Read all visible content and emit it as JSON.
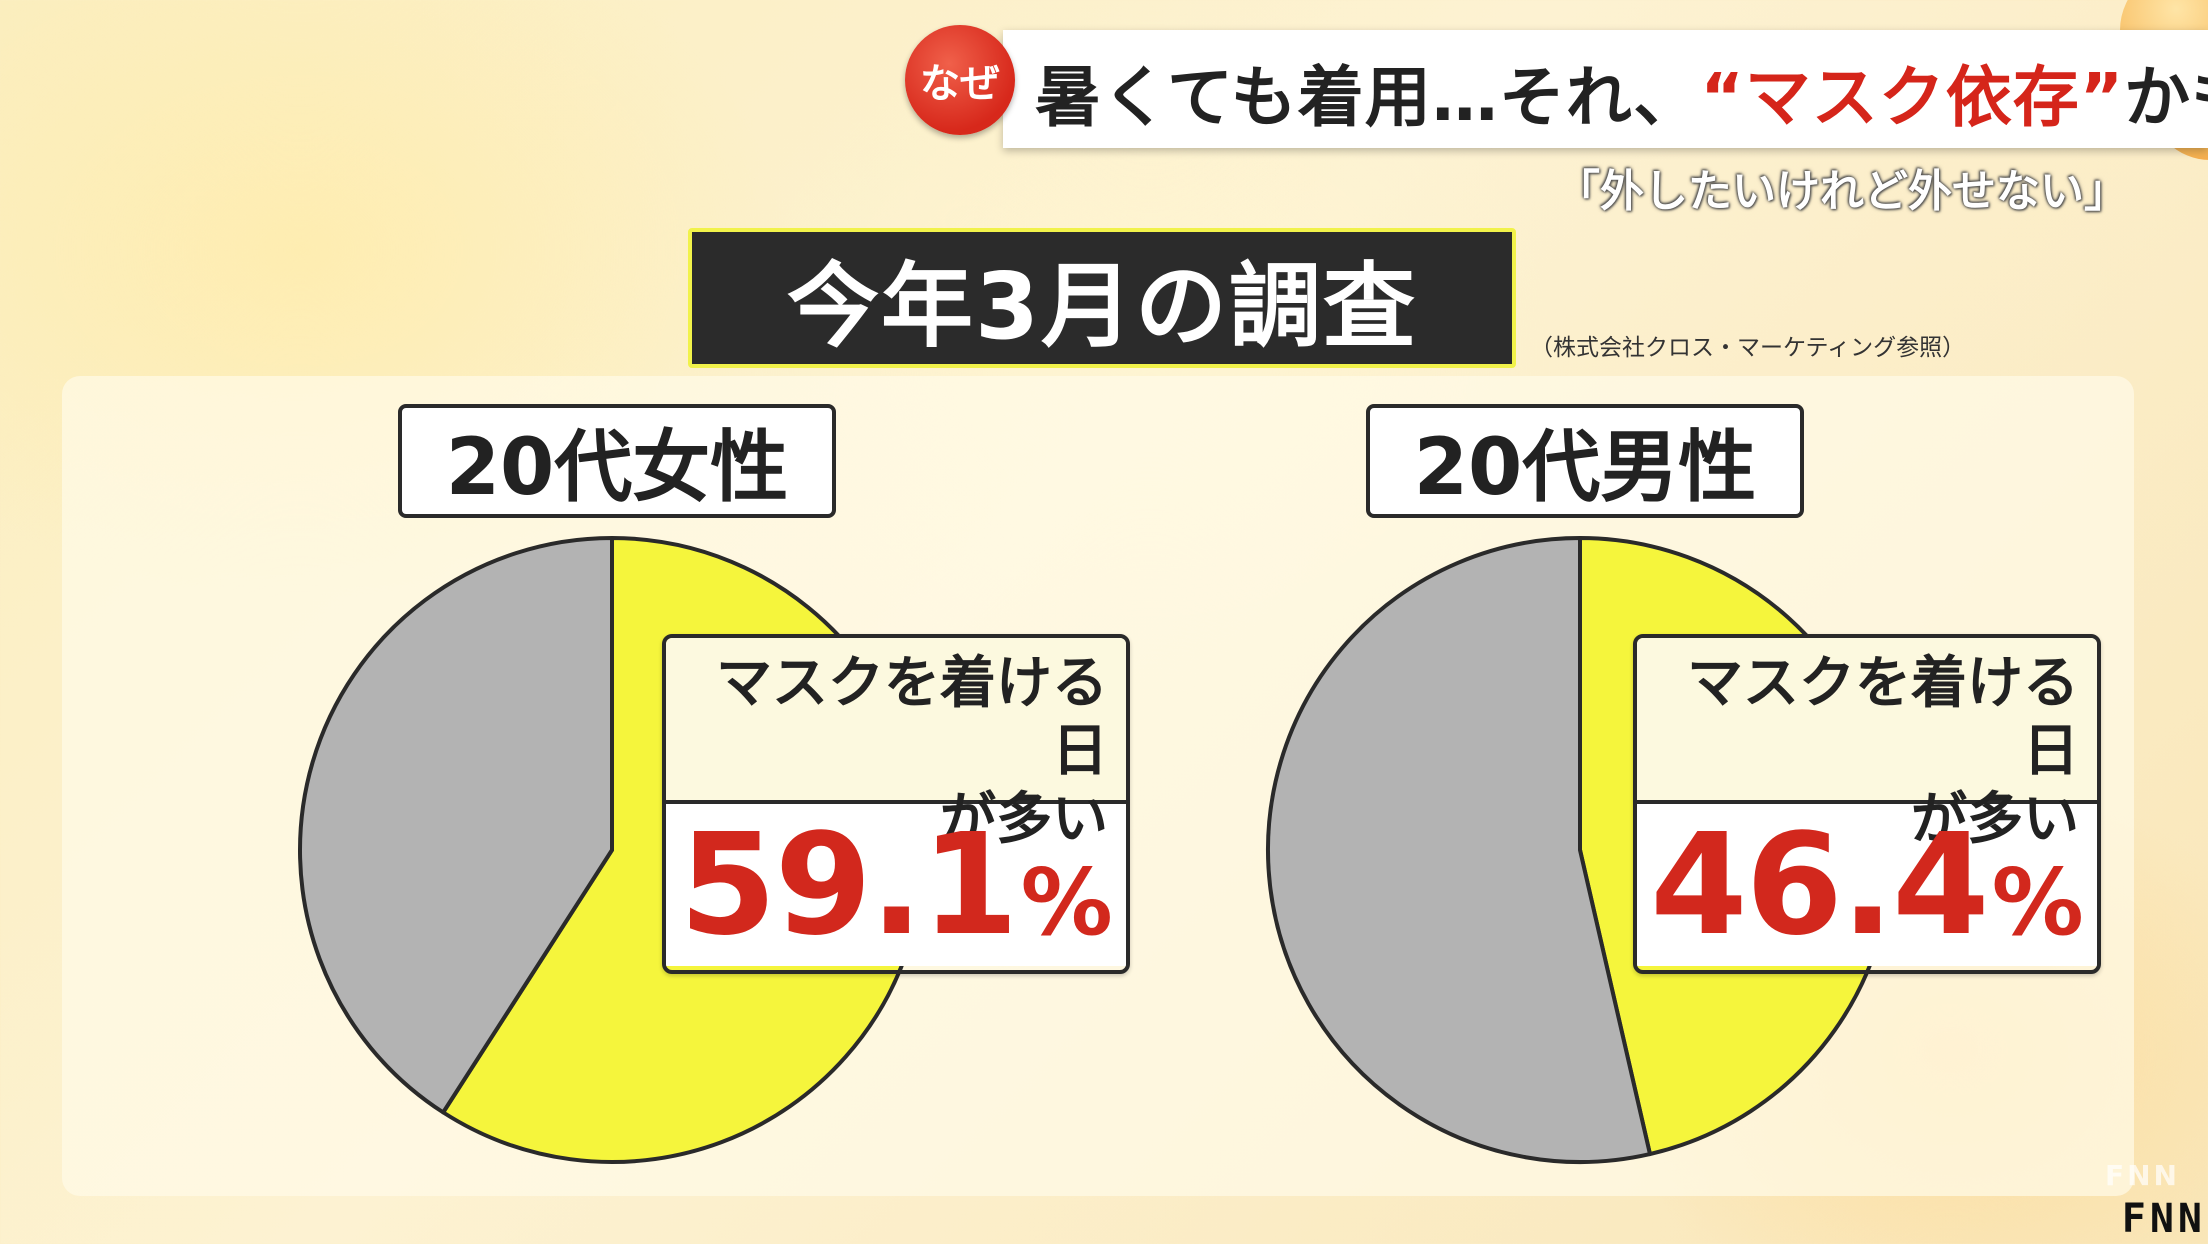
{
  "header": {
    "badge": "なぜ",
    "headline_pre": "暑くても着用…それ、",
    "headline_quote_open": "“",
    "headline_highlight": "マスク依存",
    "headline_quote_close": "”",
    "headline_post": "かも",
    "subline": "「外したいけれど外せない」"
  },
  "survey": {
    "title": "今年3月の調査",
    "source": "（株式会社クロス・マーケティング参照）"
  },
  "chart_data": [
    {
      "type": "pie",
      "title": "20代女性",
      "slices": [
        {
          "label": "マスクを着ける日が多い",
          "label_line1": "マスクを着ける日",
          "label_line2": "が多い",
          "value": 59.1,
          "color": "#f5f53c"
        },
        {
          "label": "",
          "value": 40.9,
          "color": "#b3b3b3"
        }
      ],
      "callout_value": "59.1",
      "callout_unit": "%"
    },
    {
      "type": "pie",
      "title": "20代男性",
      "slices": [
        {
          "label": "マスクを着ける日が多い",
          "label_line1": "マスクを着ける日",
          "label_line2": "が多い",
          "value": 46.4,
          "color": "#f5f53c"
        },
        {
          "label": "",
          "value": 53.6,
          "color": "#b3b3b3"
        }
      ],
      "callout_value": "46.4",
      "callout_unit": "%"
    }
  ],
  "colors": {
    "accent_red": "#d5251a",
    "pie_yellow": "#f5f53c",
    "pie_gray": "#b3b3b3"
  },
  "footer": {
    "logo": "FNN"
  }
}
